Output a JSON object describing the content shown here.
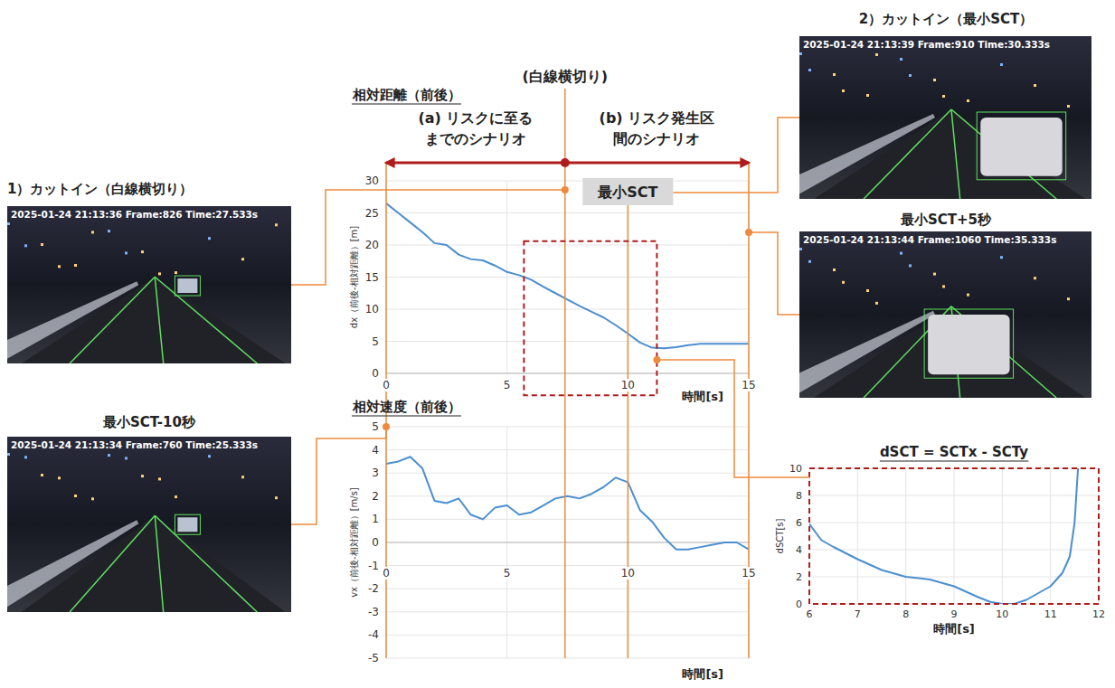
{
  "chart_data": [
    {
      "type": "line",
      "title": "相対距離（前後）",
      "x_label": "時間[s]",
      "y_label": "dx（前後-相対距離）[m]",
      "x": [
        0,
        0.5,
        1,
        1.5,
        2,
        2.5,
        3,
        3.5,
        4,
        4.5,
        5,
        5.5,
        6,
        6.5,
        7,
        7.5,
        8,
        8.5,
        9,
        9.5,
        10,
        10.5,
        11,
        11.5,
        12,
        12.5,
        13,
        13.5,
        14,
        14.5,
        15
      ],
      "values": [
        26.5,
        25.0,
        23.5,
        22.0,
        20.3,
        20.0,
        18.5,
        17.8,
        17.6,
        16.8,
        15.8,
        15.3,
        14.6,
        13.5,
        12.5,
        11.5,
        10.5,
        9.6,
        8.7,
        7.5,
        6.2,
        4.8,
        4.0,
        3.9,
        4.1,
        4.4,
        4.6,
        4.6,
        4.6,
        4.6,
        4.6
      ],
      "color": "#4b8fd0",
      "xlim": [
        0,
        15
      ],
      "ylim": [
        0,
        30
      ],
      "xticks": [
        0,
        5,
        10,
        15
      ],
      "yticks": [
        0,
        5,
        10,
        15,
        20,
        25,
        30
      ],
      "grid": true,
      "events": [
        {
          "x": 7.4,
          "label": "(白線横切り)"
        },
        {
          "x": 10,
          "label": "最小SCT"
        }
      ],
      "phases": [
        {
          "label": "(a) リスクに至るまでのシナリオ",
          "from": 0,
          "to": 7.4
        },
        {
          "label": "(b) リスク発生区間のシナリオ",
          "from": 7.4,
          "to": 15
        }
      ],
      "highlight": {
        "x": [
          5.7,
          11.2
        ],
        "y": [
          -3.4,
          20.6
        ]
      }
    },
    {
      "type": "line",
      "title": "相対速度（前後）",
      "x_label": "時間[s]",
      "y_label": "vx（前後-相対距離）[m/s]",
      "x": [
        0,
        0.5,
        1,
        1.5,
        2,
        2.5,
        3,
        3.5,
        4,
        4.5,
        5,
        5.5,
        6,
        6.5,
        7,
        7.5,
        8,
        8.5,
        9,
        9.5,
        10,
        10.5,
        11,
        11.5,
        12,
        12.5,
        13,
        13.5,
        14,
        14.5,
        15
      ],
      "values": [
        3.4,
        3.5,
        3.7,
        3.2,
        1.8,
        1.7,
        1.9,
        1.2,
        1.0,
        1.5,
        1.6,
        1.2,
        1.3,
        1.6,
        1.9,
        2.0,
        1.9,
        2.1,
        2.4,
        2.8,
        2.6,
        1.4,
        0.9,
        0.2,
        -0.3,
        -0.3,
        -0.2,
        -0.1,
        0,
        0,
        -0.3
      ],
      "color": "#4b8fd0",
      "xlim": [
        0,
        15
      ],
      "ylim": [
        -5,
        5
      ],
      "xticks": [
        0,
        5,
        10,
        15
      ],
      "yticks": [
        -5,
        -4,
        -3,
        -2,
        -1,
        0,
        1,
        2,
        3,
        4,
        5
      ],
      "grid": true
    },
    {
      "type": "line",
      "title": "dSCT = SCTx - SCTy",
      "x_label": "時間[s]",
      "y_label": "dSCT[s]",
      "x": [
        6,
        6.25,
        6.5,
        7,
        7.5,
        8,
        8.5,
        9,
        9.5,
        9.75,
        10,
        10.25,
        10.5,
        11,
        11.25,
        11.4,
        11.5,
        11.57
      ],
      "values": [
        5.9,
        4.7,
        4.2,
        3.3,
        2.5,
        2.0,
        1.8,
        1.3,
        0.5,
        0.15,
        0,
        0,
        0.3,
        1.3,
        2.3,
        3.5,
        6.0,
        10
      ],
      "color": "#4b8fd0",
      "xlim": [
        6,
        12
      ],
      "ylim": [
        0,
        10
      ],
      "xticks": [
        6,
        7,
        8,
        9,
        10,
        11,
        12
      ],
      "yticks": [
        0,
        2,
        4,
        6,
        8,
        10
      ],
      "grid": true
    }
  ],
  "photos": [
    {
      "caption": "1）カットイン（白線横切り）",
      "stamp": "2025-01-24 21:13:36 Frame:826 Time:27.533s"
    },
    {
      "caption": "最小SCT-10秒",
      "stamp": "2025-01-24 21:13:34 Frame:760 Time:25.333s"
    },
    {
      "caption": "2）カットイン（最小SCT）",
      "stamp": "2025-01-24 21:13:39 Frame:910 Time:30.333s"
    },
    {
      "caption": "最小SCT+5秒",
      "stamp": "2025-01-24 21:13:44 Frame:1060 Time:35.333s"
    }
  ]
}
